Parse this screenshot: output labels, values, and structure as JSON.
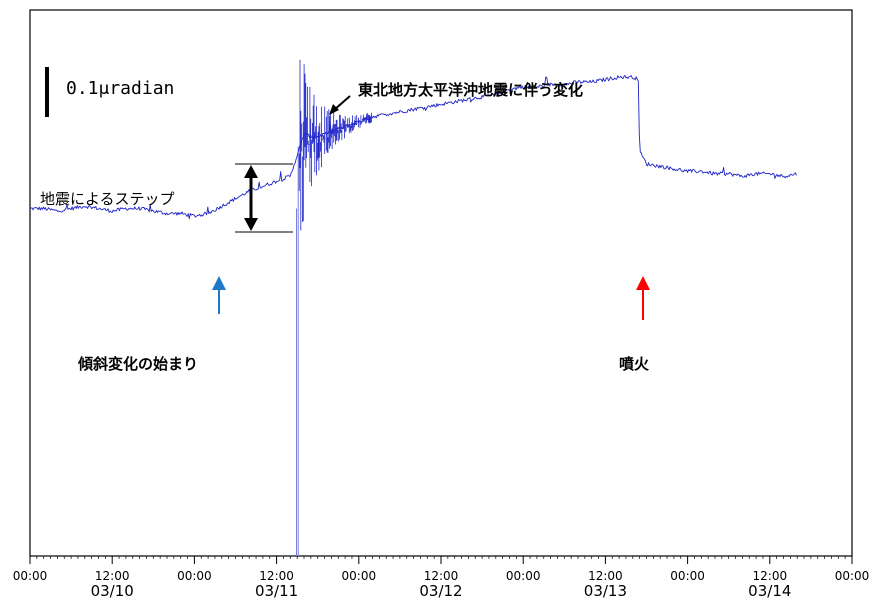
{
  "chart_data": {
    "type": "line",
    "title": "",
    "xlabel": "",
    "ylabel": "",
    "x_unit": "hours since 03/10 00:00",
    "xlim": [
      0,
      120
    ],
    "ylim": [
      -1.4,
      0.8
    ],
    "scale_bar": {
      "label": "0.1μradian",
      "value": 0.1
    },
    "ticks": [
      {
        "x": 0,
        "time": "00:00",
        "date": ""
      },
      {
        "x": 12,
        "time": "12:00",
        "date": "03/10"
      },
      {
        "x": 24,
        "time": "00:00",
        "date": ""
      },
      {
        "x": 36,
        "time": "12:00",
        "date": "03/11"
      },
      {
        "x": 48,
        "time": "00:00",
        "date": ""
      },
      {
        "x": 60,
        "time": "12:00",
        "date": "03/12"
      },
      {
        "x": 72,
        "time": "00:00",
        "date": ""
      },
      {
        "x": 84,
        "time": "12:00",
        "date": "03/13"
      },
      {
        "x": 96,
        "time": "00:00",
        "date": ""
      },
      {
        "x": 108,
        "time": "12:00",
        "date": "03/14"
      },
      {
        "x": 120,
        "time": "00:00",
        "date": ""
      }
    ],
    "series": [
      {
        "name": "",
        "color": "#1f24c8",
        "points": [
          [
            0,
            0.0
          ],
          [
            2,
            0.0
          ],
          [
            4,
            -0.01
          ],
          [
            6,
            0.0
          ],
          [
            8,
            0.01
          ],
          [
            10,
            0.0
          ],
          [
            12,
            -0.01
          ],
          [
            14,
            0.0
          ],
          [
            16,
            0.0
          ],
          [
            18,
            -0.01
          ],
          [
            20,
            -0.02
          ],
          [
            22,
            -0.02
          ],
          [
            24,
            -0.03
          ],
          [
            26,
            -0.02
          ],
          [
            28,
            0.01
          ],
          [
            30,
            0.04
          ],
          [
            32,
            0.07
          ],
          [
            34,
            0.09
          ],
          [
            36,
            0.11
          ],
          [
            38,
            0.13
          ],
          [
            39.3,
            0.24
          ],
          [
            40,
            0.3
          ],
          [
            41,
            0.29
          ],
          [
            42,
            0.29
          ],
          [
            43,
            0.3
          ],
          [
            44,
            0.31
          ],
          [
            46,
            0.33
          ],
          [
            48,
            0.35
          ],
          [
            50,
            0.37
          ],
          [
            52,
            0.38
          ],
          [
            54,
            0.39
          ],
          [
            56,
            0.4
          ],
          [
            58,
            0.41
          ],
          [
            60,
            0.42
          ],
          [
            62,
            0.43
          ],
          [
            64,
            0.44
          ],
          [
            66,
            0.45
          ],
          [
            68,
            0.46
          ],
          [
            70,
            0.48
          ],
          [
            72,
            0.49
          ],
          [
            74,
            0.49
          ],
          [
            76,
            0.5
          ],
          [
            78,
            0.5
          ],
          [
            80,
            0.51
          ],
          [
            82,
            0.51
          ],
          [
            84,
            0.52
          ],
          [
            86,
            0.53
          ],
          [
            88,
            0.53
          ],
          [
            88.8,
            0.52
          ],
          [
            89.0,
            0.23
          ],
          [
            90,
            0.18
          ],
          [
            92,
            0.17
          ],
          [
            94,
            0.16
          ],
          [
            96,
            0.15
          ],
          [
            98,
            0.15
          ],
          [
            100,
            0.14
          ],
          [
            102,
            0.14
          ],
          [
            104,
            0.13
          ],
          [
            106,
            0.14
          ],
          [
            108,
            0.14
          ],
          [
            110,
            0.13
          ],
          [
            112,
            0.14
          ]
        ]
      }
    ],
    "annotations": [
      {
        "id": "earthquake",
        "text": "東北地方太平洋沖地震に伴う変化"
      },
      {
        "id": "step",
        "text": "地震によるステップ"
      },
      {
        "id": "onset",
        "text": "傾斜変化の始まり",
        "arrow_color": "#1f77c8",
        "x": 27.5
      },
      {
        "id": "eruption",
        "text": "噴火",
        "arrow_color": "#ff0000",
        "x": 88.8
      }
    ]
  }
}
